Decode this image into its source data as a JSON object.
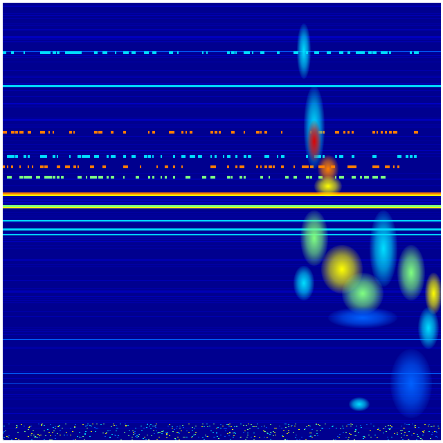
{
  "colors": {
    "background": "#00008f",
    "low": "#0000d0",
    "mid_low": "#0060ff",
    "cyan": "#00e0ff",
    "green": "#80ff80",
    "yellow": "#ffff00",
    "orange": "#ff8000",
    "red": "#e00000"
  }
}
